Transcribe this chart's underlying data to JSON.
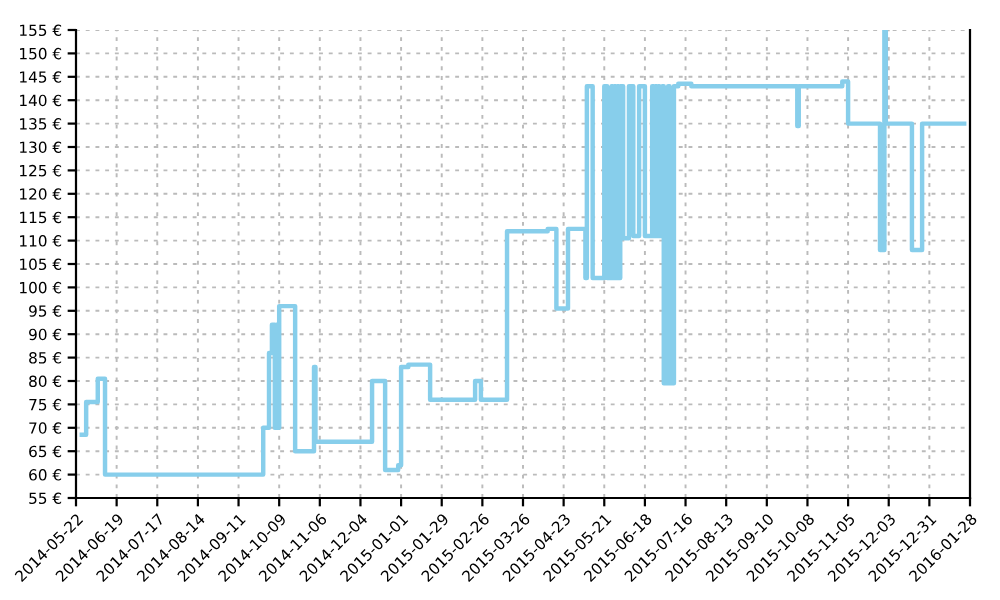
{
  "chart_data": {
    "type": "step",
    "x": [
      "2014-05-26",
      "2014-05-29",
      "2014-06-06",
      "2014-06-11",
      "2014-09-28",
      "2014-10-02",
      "2014-10-04",
      "2014-10-06",
      "2014-10-07",
      "2014-10-08",
      "2014-10-09",
      "2014-10-20",
      "2014-11-02",
      "2014-11-03",
      "2014-12-12",
      "2014-12-21",
      "2014-12-30",
      "2015-01-01",
      "2015-01-06",
      "2015-01-21",
      "2015-02-21",
      "2015-02-25",
      "2015-03-15",
      "2015-04-12",
      "2015-04-18",
      "2015-04-26",
      "2015-05-08",
      "2015-05-09",
      "2015-05-13",
      "2015-05-21",
      "2015-05-23",
      "2015-05-26",
      "2015-05-27",
      "2015-05-28",
      "2015-05-29",
      "2015-05-30",
      "2015-05-31",
      "2015-06-01",
      "2015-06-03",
      "2015-06-07",
      "2015-06-10",
      "2015-06-14",
      "2015-06-18",
      "2015-06-23",
      "2015-06-24",
      "2015-06-25",
      "2015-06-26",
      "2015-06-27",
      "2015-06-28",
      "2015-06-30",
      "2015-07-01",
      "2015-07-04",
      "2015-07-05",
      "2015-07-08",
      "2015-07-11",
      "2015-07-20",
      "2015-10-01",
      "2015-10-02",
      "2015-11-01",
      "2015-11-05",
      "2015-11-27",
      "2015-11-30",
      "2015-12-01",
      "2015-12-19",
      "2015-12-26",
      "2016-01-24"
    ],
    "series": [
      {
        "color": "#87ceeb",
        "values": [
          68.5,
          75.5,
          80.5,
          60,
          70,
          86,
          92,
          70,
          92,
          70,
          96,
          65,
          83,
          67,
          80,
          61,
          62,
          83,
          83.5,
          76,
          80,
          76,
          112,
          112.5,
          95.5,
          112.5,
          102,
          143,
          102,
          143,
          102,
          143,
          102,
          143,
          102,
          143,
          102,
          143,
          110.5,
          143,
          111,
          143,
          111,
          143,
          111,
          143,
          111,
          143,
          111,
          143,
          79.5,
          143,
          79.5,
          143,
          143.5,
          143,
          134.5,
          143,
          144,
          135,
          108,
          155,
          135,
          108,
          135,
          135
        ]
      }
    ],
    "xlim": [
      "2014-05-22",
      "2016-01-28"
    ],
    "xticks": [
      "2014-05-22",
      "2014-06-19",
      "2014-07-17",
      "2014-08-14",
      "2014-09-11",
      "2014-10-09",
      "2014-11-06",
      "2014-12-04",
      "2015-01-01",
      "2015-01-29",
      "2015-02-26",
      "2015-03-26",
      "2015-04-23",
      "2015-05-21",
      "2015-06-18",
      "2015-07-16",
      "2015-08-13",
      "2015-09-10",
      "2015-10-08",
      "2015-11-05",
      "2015-12-03",
      "2015-12-31",
      "2016-01-28"
    ],
    "ylim": [
      55,
      155
    ],
    "yticks": [
      {
        "value": 55,
        "label": "55 €"
      },
      {
        "value": 60,
        "label": "60 €"
      },
      {
        "value": 65,
        "label": "65 €"
      },
      {
        "value": 70,
        "label": "70 €"
      },
      {
        "value": 75,
        "label": "75 €"
      },
      {
        "value": 80,
        "label": "80 €"
      },
      {
        "value": 85,
        "label": "85 €"
      },
      {
        "value": 90,
        "label": "90 €"
      },
      {
        "value": 95,
        "label": "95 €"
      },
      {
        "value": 100,
        "label": "100 €"
      },
      {
        "value": 105,
        "label": "105 €"
      },
      {
        "value": 110,
        "label": "110 €"
      },
      {
        "value": 115,
        "label": "115 €"
      },
      {
        "value": 120,
        "label": "120 €"
      },
      {
        "value": 125,
        "label": "125 €"
      },
      {
        "value": 130,
        "label": "130 €"
      },
      {
        "value": 135,
        "label": "135 €"
      },
      {
        "value": 140,
        "label": "140 €"
      },
      {
        "value": 145,
        "label": "145 €"
      },
      {
        "value": 150,
        "label": "150 €"
      },
      {
        "value": 155,
        "label": "155 €"
      }
    ],
    "grid": true,
    "line_style": "solid",
    "marker": "none"
  }
}
